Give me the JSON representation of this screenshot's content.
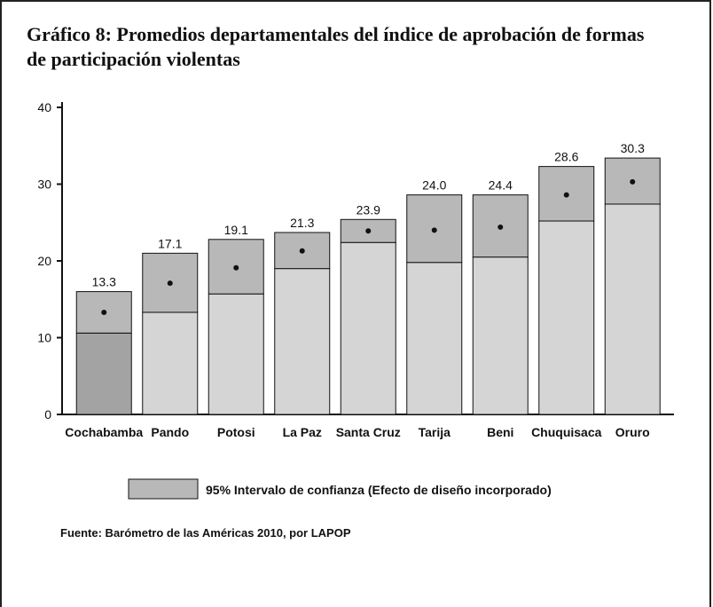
{
  "chart_data": {
    "type": "bar",
    "title": [
      "Gráfico 8: Promedios departamentales del índice de aprobación de formas",
      "de participación violentas"
    ],
    "categories": [
      "Cochabamba",
      "Pando",
      "Potosi",
      "La Paz",
      "Santa Cruz",
      "Tarija",
      "Beni",
      "Chuquisaca",
      "Oruro"
    ],
    "values": [
      13.3,
      17.1,
      19.1,
      21.3,
      23.9,
      24.0,
      24.4,
      28.6,
      30.3
    ],
    "value_labels": [
      "13.3",
      "17.1",
      "19.1",
      "21.3",
      "23.9",
      "24.0",
      "24.4",
      "28.6",
      "30.3"
    ],
    "ci_lower": [
      10.6,
      13.3,
      15.7,
      19.0,
      22.4,
      19.8,
      20.5,
      25.2,
      27.4
    ],
    "ci_upper": [
      16.0,
      21.0,
      22.8,
      23.7,
      25.4,
      28.6,
      28.6,
      32.3,
      33.4
    ],
    "colors": [
      "#a3a3a3",
      "#d5d5d5",
      "#d5d5d5",
      "#d5d5d5",
      "#d5d5d5",
      "#d5d5d5",
      "#d5d5d5",
      "#d5d5d5",
      "#d5d5d5"
    ],
    "ci_color": "#b8b8b8",
    "ylim": [
      0,
      40
    ],
    "yticks": [
      0,
      10,
      20,
      30,
      40
    ],
    "legend": "95% Intervalo de confianza (Efecto de diseño incorporado)",
    "source": "Fuente: Barómetro de las Américas 2010, por LAPOP"
  }
}
